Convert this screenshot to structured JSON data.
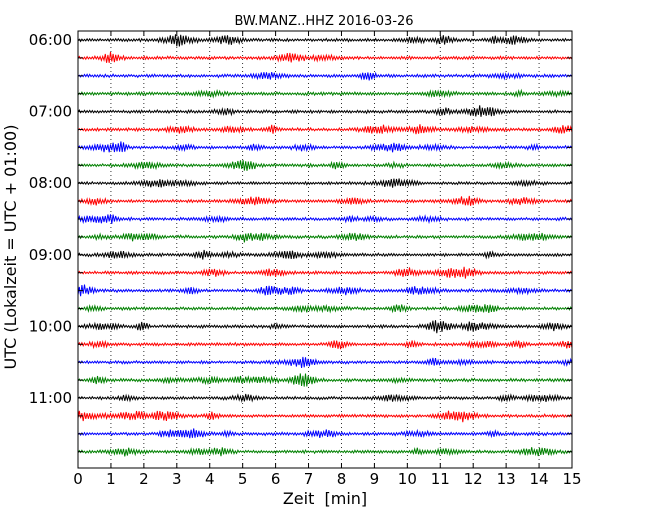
{
  "chart_data": {
    "type": "line",
    "title": "BW.MANZ..HHZ 2016-03-26",
    "xlabel": "Zeit  [min]",
    "ylabel": "UTC (Lokalzeit = UTC + 01:00)",
    "xlim": [
      0,
      15
    ],
    "x_ticks": [
      "0",
      "1",
      "2",
      "3",
      "4",
      "5",
      "6",
      "7",
      "8",
      "9",
      "10",
      "11",
      "12",
      "13",
      "14",
      "15"
    ],
    "y_tick_labels": [
      "06:00",
      "07:00",
      "08:00",
      "09:00",
      "10:00",
      "11:00"
    ],
    "grid": {
      "vertical": true,
      "style": "dotted"
    },
    "trace_interval_min": 15,
    "color_cycle": [
      "#000000",
      "#ff0000",
      "#0000ff",
      "#008000"
    ],
    "traces": [
      {
        "start": "06:00"
      },
      {
        "start": "06:15"
      },
      {
        "start": "06:30"
      },
      {
        "start": "06:45"
      },
      {
        "start": "07:00"
      },
      {
        "start": "07:15"
      },
      {
        "start": "07:30"
      },
      {
        "start": "07:45"
      },
      {
        "start": "08:00"
      },
      {
        "start": "08:15"
      },
      {
        "start": "08:30"
      },
      {
        "start": "08:45"
      },
      {
        "start": "09:00"
      },
      {
        "start": "09:15"
      },
      {
        "start": "09:30"
      },
      {
        "start": "09:45"
      },
      {
        "start": "10:00"
      },
      {
        "start": "10:15"
      },
      {
        "start": "10:30"
      },
      {
        "start": "10:45"
      },
      {
        "start": "11:00"
      },
      {
        "start": "11:15"
      },
      {
        "start": "11:30"
      },
      {
        "start": "11:45"
      }
    ]
  }
}
